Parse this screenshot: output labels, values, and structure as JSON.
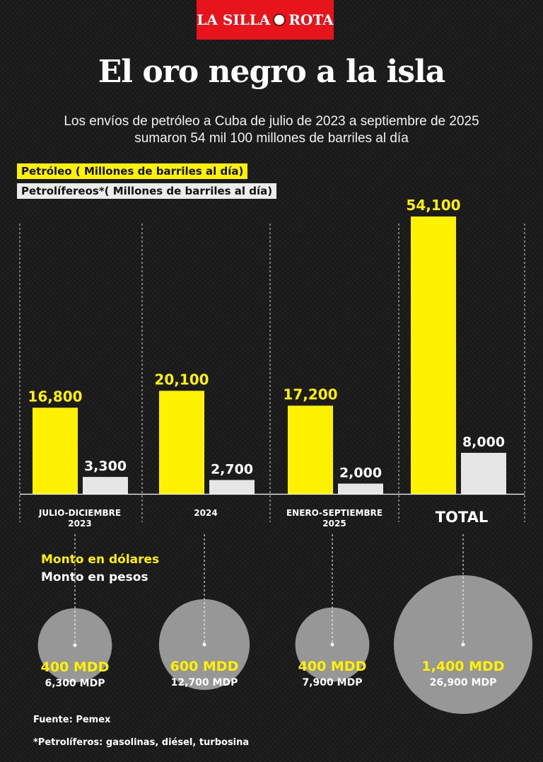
{
  "brand": {
    "logo_left": "LA SILLA",
    "logo_right": "ROTA"
  },
  "title": "El oro negro a la isla",
  "subtitle": "Los envíos de petróleo a Cuba de julio de 2023 a septiembre de 2025 sumaron 54 mil 100 millones de barriles al día",
  "legend": {
    "petroleo": "Petróleo ( Millones de barriles al día)",
    "petroliferos": "Petrolífereos*( Millones de barriles al día)"
  },
  "chart_data": {
    "type": "bar",
    "categories": [
      "JULIO-DICIEMBRE 2023",
      "2024",
      "ENERO-SEPTIEMBRE 2025",
      "TOTAL"
    ],
    "series": [
      {
        "name": "Petróleo ( Millones de barriles al día)",
        "values": [
          16800,
          20100,
          17200,
          54100
        ],
        "labels": [
          "16,800",
          "20,100",
          "17,200",
          "54,100"
        ]
      },
      {
        "name": "Petrolífereos*( Millones de barriles al día)",
        "values": [
          3300,
          2700,
          2000,
          8000
        ],
        "labels": [
          "3,300",
          "2,700",
          "2,000",
          "8,000"
        ]
      }
    ],
    "ylim": [
      0,
      54100
    ],
    "colors": {
      "petroleo": "#fff200",
      "petroliferos": "#e6e6e6",
      "grid": "#ffffff",
      "circle": "#9e9e9e"
    },
    "grid": "dashed vertical separators",
    "monto": {
      "usd_label": "Monto en dólares",
      "mxn_label": "Monto en pesos",
      "usd_mdd": [
        400,
        600,
        400,
        1400
      ],
      "usd": [
        "400 MDD",
        "600 MDD",
        "400 MDD",
        "1,400 MDD"
      ],
      "mxn": [
        "6,300 MDP",
        "12,700 MDP",
        "7,900 MDP",
        "26,900 MDP"
      ]
    }
  },
  "footer": {
    "source": "Fuente: Pemex",
    "note": "*Petrolíferos: gasolinas, diésel, turbosina"
  }
}
